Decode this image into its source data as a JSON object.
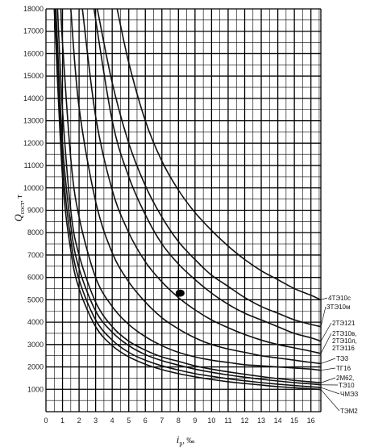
{
  "chart_data": {
    "type": "line",
    "xlabel": "i_p, ‰",
    "xlabel_main": "i",
    "xlabel_sub": "p",
    "xlabel_unit": ", ‰",
    "ylabel": "Q_сост, т",
    "ylabel_main": "Q",
    "ylabel_sub": "сост",
    "ylabel_unit": ", т",
    "xlim": [
      0,
      16.6
    ],
    "ylim": [
      0,
      18000
    ],
    "x_ticks": [
      0,
      1,
      2,
      3,
      4,
      5,
      6,
      7,
      8,
      9,
      10,
      11,
      12,
      13,
      14,
      15,
      16
    ],
    "y_ticks": [
      1000,
      2000,
      3000,
      4000,
      5000,
      6000,
      7000,
      8000,
      9000,
      10000,
      11000,
      12000,
      13000,
      14000,
      15000,
      16000,
      17000,
      18000
    ],
    "grid": true,
    "marker": {
      "x": 8.1,
      "y": 5300
    },
    "series": [
      {
        "name": "4ТЭ10с",
        "x": [
          4.3,
          5,
          6,
          7,
          8,
          9,
          10,
          11,
          12,
          13,
          14,
          15,
          16,
          16.6
        ],
        "y": [
          18000,
          15600,
          13000,
          11200,
          9900,
          8900,
          8100,
          7400,
          6800,
          6300,
          5900,
          5500,
          5200,
          5000
        ]
      },
      {
        "name": "3ТЭ10м",
        "x": [
          3.1,
          4,
          5,
          6,
          7,
          8,
          9,
          10,
          11,
          12,
          13,
          14,
          15,
          16,
          16.6
        ],
        "y": [
          18000,
          14700,
          12000,
          10100,
          8700,
          7600,
          6800,
          6100,
          5600,
          5100,
          4700,
          4400,
          4100,
          3900,
          3800
        ]
      },
      {
        "name": "2ТЭ121",
        "x": [
          2.9,
          4,
          5,
          6,
          7,
          8,
          9,
          10,
          11,
          12,
          13,
          14,
          15,
          16,
          16.6
        ],
        "y": [
          18000,
          13000,
          10500,
          8800,
          7500,
          6600,
          5900,
          5300,
          4800,
          4400,
          4100,
          3800,
          3500,
          3300,
          3150
        ]
      },
      {
        "name": "2ТЭ10в, 2ТЭ10л, 2ТЭ116",
        "x": [
          2.2,
          3,
          4,
          5,
          6,
          7,
          8,
          9,
          10,
          11,
          12,
          13,
          14,
          15,
          16,
          16.6
        ],
        "y": [
          18000,
          13200,
          9900,
          8000,
          6700,
          5800,
          5100,
          4550,
          4100,
          3750,
          3450,
          3200,
          3000,
          2850,
          2700,
          2600
        ]
      },
      {
        "name": "ТЭ3",
        "x": [
          1.5,
          2,
          3,
          4,
          5,
          6,
          7,
          8,
          9,
          10,
          11,
          12,
          13,
          14,
          15,
          16,
          16.6
        ],
        "y": [
          18000,
          13600,
          9400,
          7100,
          5800,
          4900,
          4200,
          3700,
          3300,
          3000,
          2800,
          2650,
          2500,
          2400,
          2300,
          2200,
          2150
        ]
      },
      {
        "name": "ТГ16",
        "x": [
          0.9,
          1,
          1.5,
          2,
          3,
          4,
          5,
          6,
          7,
          8,
          9,
          10,
          11,
          12,
          13,
          14,
          15,
          16,
          16.6
        ],
        "y": [
          18000,
          16500,
          11300,
          8700,
          6000,
          4700,
          3900,
          3350,
          2950,
          2650,
          2450,
          2300,
          2200,
          2100,
          2050,
          2000,
          1950,
          1900,
          1850
        ]
      },
      {
        "name": "2М62",
        "x": [
          0.7,
          1,
          1.5,
          2,
          3,
          4,
          5,
          6,
          7,
          8,
          9,
          10,
          11,
          12,
          13,
          14,
          15,
          16,
          16.6
        ],
        "y": [
          18000,
          13500,
          9000,
          7000,
          4900,
          3800,
          3150,
          2750,
          2450,
          2250,
          2050,
          1900,
          1780,
          1670,
          1570,
          1480,
          1400,
          1330,
          1290
        ]
      },
      {
        "name": "ТЭ10",
        "x": [
          0.6,
          1,
          1.5,
          2,
          3,
          4,
          5,
          6,
          7,
          8,
          9,
          10,
          11,
          12,
          13,
          14,
          15,
          16,
          16.6
        ],
        "y": [
          18000,
          12000,
          8300,
          6400,
          4500,
          3550,
          2950,
          2550,
          2280,
          2080,
          1900,
          1760,
          1640,
          1540,
          1450,
          1370,
          1300,
          1240,
          1200
        ]
      },
      {
        "name": "ЧМЭ3",
        "x": [
          0.55,
          1,
          1.5,
          2,
          3,
          4,
          5,
          6,
          7,
          8,
          9,
          10,
          11,
          12,
          13,
          14,
          15,
          16,
          16.6
        ],
        "y": [
          18000,
          11200,
          7700,
          5900,
          4100,
          3200,
          2650,
          2300,
          2050,
          1860,
          1700,
          1580,
          1470,
          1380,
          1300,
          1230,
          1170,
          1110,
          1080
        ]
      },
      {
        "name": "ТЭМ2",
        "x": [
          0.5,
          1,
          1.5,
          2,
          3,
          4,
          5,
          6,
          7,
          8,
          9,
          10,
          11,
          12,
          13,
          14,
          15,
          16,
          16.6
        ],
        "y": [
          18000,
          10500,
          7200,
          5500,
          3800,
          2950,
          2450,
          2120,
          1880,
          1700,
          1560,
          1440,
          1340,
          1260,
          1190,
          1120,
          1070,
          1020,
          990
        ]
      }
    ],
    "series_labels": [
      {
        "text": "4ТЭ10с",
        "lx": 407,
        "ly": 372,
        "ax": 16.6,
        "ay": 5000
      },
      {
        "text": "3ТЭ10м",
        "lx": 405,
        "ly": 383,
        "ax": 16.6,
        "ay": 3800
      },
      {
        "text": "2ТЭ121",
        "lx": 412,
        "ly": 403,
        "ax": 16.6,
        "ay": 3150
      },
      {
        "text": "2ТЭ10в,",
        "lx": 412,
        "ly": 416,
        "ax": 16.6,
        "ay": 2600
      },
      {
        "text": "2ТЭ10л,",
        "lx": 412,
        "ly": 425,
        "ax": null,
        "ay": null
      },
      {
        "text": "2ТЭ116",
        "lx": 412,
        "ly": 434,
        "ax": null,
        "ay": null
      },
      {
        "text": "ТЭ3",
        "lx": 417,
        "ly": 447,
        "ax": 16.6,
        "ay": 2150
      },
      {
        "text": "ТГ16",
        "lx": 417,
        "ly": 459,
        "ax": 16.6,
        "ay": 1850
      },
      {
        "text": "2М62,",
        "lx": 417,
        "ly": 471,
        "ax": 16.6,
        "ay": 1290
      },
      {
        "text": "ТЭ10",
        "lx": 420,
        "ly": 480,
        "ax": 16.6,
        "ay": 1200
      },
      {
        "text": "ЧМЭ3",
        "lx": 422,
        "ly": 491,
        "ax": 16.6,
        "ay": 1080
      },
      {
        "text": "ТЭМ2",
        "lx": 422,
        "ly": 512,
        "ax": 16.6,
        "ay": 990
      }
    ]
  }
}
